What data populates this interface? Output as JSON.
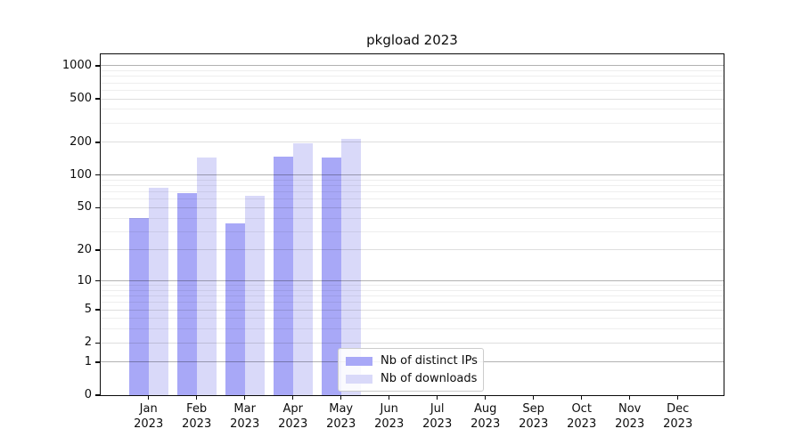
{
  "title": "pkgload 2023",
  "chart_data": {
    "type": "bar",
    "title": "pkgload 2023",
    "x_categories": [
      "Jan",
      "Feb",
      "Mar",
      "Apr",
      "May",
      "Jun",
      "Jul",
      "Aug",
      "Sep",
      "Oct",
      "Nov",
      "Dec"
    ],
    "x_year": "2023",
    "series": [
      {
        "name": "Nb of distinct IPs",
        "color": "#a8a8f7",
        "values": [
          40,
          68,
          36,
          148,
          145,
          null,
          null,
          null,
          null,
          null,
          null,
          null
        ]
      },
      {
        "name": "Nb of downloads",
        "color": "#d9d9f9",
        "values": [
          76,
          145,
          65,
          195,
          215,
          null,
          null,
          null,
          null,
          null,
          null,
          null
        ]
      }
    ],
    "y_scale": "log10(value+1)",
    "y_ticks": [
      0,
      1,
      2,
      5,
      10,
      20,
      50,
      100,
      200,
      500,
      1000
    ],
    "y_major_gridlines": [
      1,
      10,
      100,
      1000
    ],
    "y_minor_gridlines": [
      3,
      4,
      6,
      7,
      8,
      9,
      30,
      40,
      60,
      70,
      80,
      90,
      300,
      400,
      600,
      700,
      800,
      900
    ],
    "ylim": [
      0,
      1280
    ],
    "grid": true,
    "legend_position": "lower center"
  }
}
